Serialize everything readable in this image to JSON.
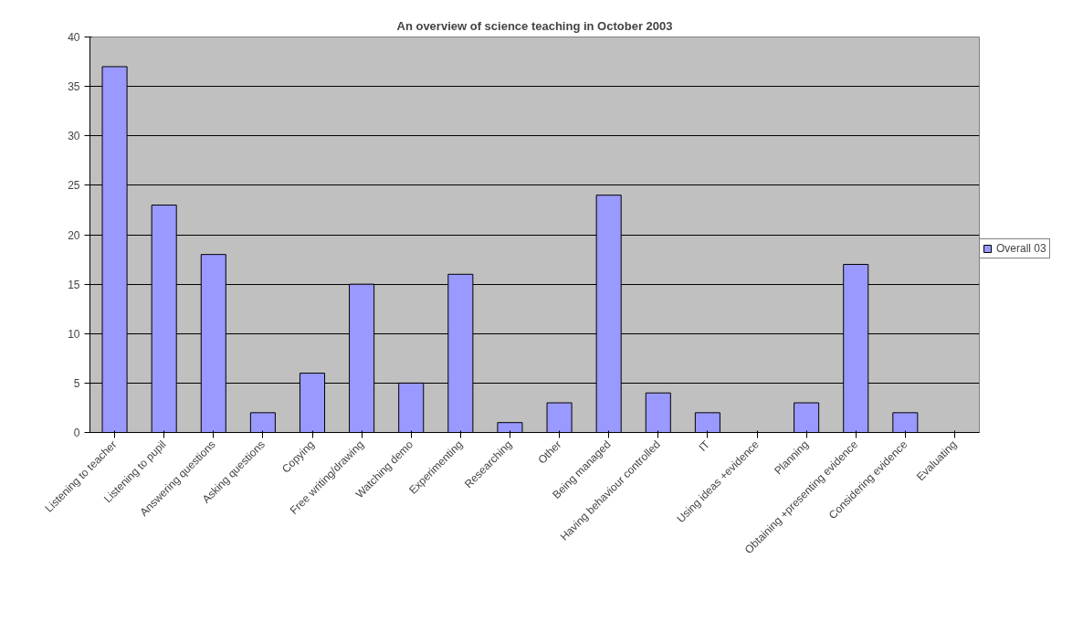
{
  "chart_data": {
    "type": "bar",
    "title": "An overview of science teaching in October 2003",
    "categories": [
      "Listening to teacher",
      "Listening to pupil",
      "Answering questions",
      "Asking questions",
      "Copying",
      "Free writing/drawing",
      "Watching demo",
      "Experimenting",
      "Researching",
      "Other",
      "Being managed",
      "Having behaviour controlled",
      "IT",
      "Using ideas +evidence",
      "Planning",
      "Obtaining +presenting evidence",
      "Considering evidence",
      "Evaluating"
    ],
    "series": [
      {
        "name": "Overall 03",
        "color": "#9999ff",
        "values": [
          37,
          23,
          18,
          2,
          6,
          15,
          5,
          16,
          1,
          3,
          24,
          4,
          2,
          0,
          3,
          17,
          2,
          0
        ]
      }
    ],
    "ylim": [
      0,
      40
    ],
    "yticks": [
      0,
      5,
      10,
      15,
      20,
      25,
      30,
      35,
      40
    ],
    "grid": "y",
    "legend": "right"
  }
}
